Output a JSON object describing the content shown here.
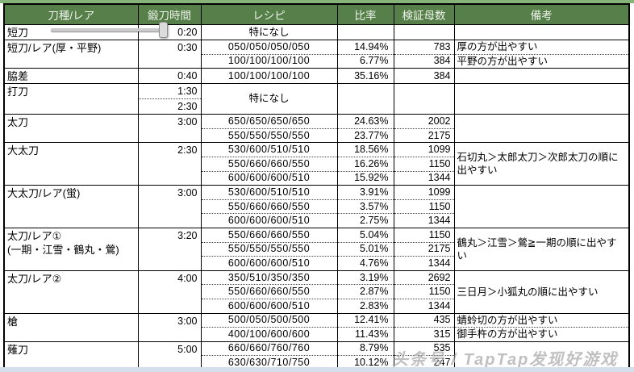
{
  "watermark": {
    "text": "头条号 / TapTap发现好游戏"
  },
  "colors": {
    "header_green": "#567f49",
    "header_text": "#edf3ea",
    "grid_border": "#000000",
    "top_strip": "#86b379",
    "bottom_strip": "#d4dfeb",
    "watermark_gray": "#9a9a9a"
  },
  "table": {
    "columns": [
      {
        "key": "type",
        "label": "刀種/レア"
      },
      {
        "key": "time",
        "label": "鍛刀時間"
      },
      {
        "key": "recipe",
        "label": "レシピ"
      },
      {
        "key": "ratio",
        "label": "比率"
      },
      {
        "key": "sample",
        "label": "検証母数"
      },
      {
        "key": "note",
        "label": "備考"
      }
    ],
    "no_recipe_text": "特になし",
    "groups": [
      {
        "name_lines": [
          "短刀"
        ],
        "times": [
          "0:20"
        ],
        "rows": [],
        "notes": []
      },
      {
        "name_lines": [
          "短刀/レア(厚・平野)"
        ],
        "times": [
          "0:30"
        ],
        "rows": [
          {
            "recipe": "050/050/050/050",
            "ratio": "14.94%",
            "sample": "783"
          },
          {
            "recipe": "100/100/100/100",
            "ratio": "6.77%",
            "sample": "384"
          }
        ],
        "notes": [
          "厚の方が出やすい",
          "平野の方が出やすい"
        ]
      },
      {
        "name_lines": [
          "脇差"
        ],
        "times": [
          "0:40"
        ],
        "rows": [
          {
            "recipe": "100/100/100/100",
            "ratio": "35.16%",
            "sample": "384"
          }
        ],
        "notes": []
      },
      {
        "name_lines": [
          "打刀"
        ],
        "times": [
          "1:30",
          "2:30"
        ],
        "rows": [],
        "notes": []
      },
      {
        "name_lines": [
          "太刀"
        ],
        "times": [
          "3:00"
        ],
        "rows": [
          {
            "recipe": "650/650/650/650",
            "ratio": "24.63%",
            "sample": "2002"
          },
          {
            "recipe": "550/550/550/550",
            "ratio": "23.77%",
            "sample": "2175"
          }
        ],
        "notes": []
      },
      {
        "name_lines": [
          "大太刀"
        ],
        "times": [
          "2:30"
        ],
        "rows": [
          {
            "recipe": "530/600/510/510",
            "ratio": "18.56%",
            "sample": "1099"
          },
          {
            "recipe": "550/660/660/550",
            "ratio": "16.26%",
            "sample": "1150"
          },
          {
            "recipe": "600/600/600/510",
            "ratio": "15.92%",
            "sample": "1344"
          }
        ],
        "notes": [
          "石切丸＞太郎太刀＞次郎太刀の順に出やすい"
        ]
      },
      {
        "name_lines": [
          "大太刀/レア(蛍)"
        ],
        "times": [
          "3:00"
        ],
        "rows": [
          {
            "recipe": "530/600/510/510",
            "ratio": "3.91%",
            "sample": "1099"
          },
          {
            "recipe": "550/660/660/550",
            "ratio": "3.57%",
            "sample": "1150"
          },
          {
            "recipe": "600/600/600/510",
            "ratio": "2.75%",
            "sample": "1344"
          }
        ],
        "notes": []
      },
      {
        "name_lines": [
          "太刀/レア①",
          "(一期・江雪・鶴丸・鶯)"
        ],
        "times": [
          "3:20"
        ],
        "rows": [
          {
            "recipe": "550/660/660/550",
            "ratio": "5.04%",
            "sample": "1150"
          },
          {
            "recipe": "550/550/550/550",
            "ratio": "5.01%",
            "sample": "2175"
          },
          {
            "recipe": "600/600/600/510",
            "ratio": "4.76%",
            "sample": "1344"
          }
        ],
        "notes": [
          "鶴丸＞江雪＞鶯≧一期の順に出やすい"
        ]
      },
      {
        "name_lines": [
          "太刀/レア②"
        ],
        "times": [
          "4:00"
        ],
        "rows": [
          {
            "recipe": "350/510/350/350",
            "ratio": "3.19%",
            "sample": "2692"
          },
          {
            "recipe": "550/660/660/550",
            "ratio": "2.87%",
            "sample": "1150"
          },
          {
            "recipe": "600/600/600/510",
            "ratio": "2.83%",
            "sample": "1344"
          }
        ],
        "notes": [
          "三日月＞小狐丸の順に出やすい"
        ]
      },
      {
        "name_lines": [
          "槍"
        ],
        "times": [
          "3:00"
        ],
        "rows": [
          {
            "recipe": "500/050/500/500",
            "ratio": "12.41%",
            "sample": "435"
          },
          {
            "recipe": "400/100/600/600",
            "ratio": "11.43%",
            "sample": "315"
          }
        ],
        "notes": [
          "蜻蛉切の方が出やすい",
          "御手杵の方が出やすい"
        ]
      },
      {
        "name_lines": [
          "薙刀"
        ],
        "times": [
          "5:00"
        ],
        "rows": [
          {
            "recipe": "660/660/760/760",
            "ratio": "8.79%",
            "sample": "535"
          },
          {
            "recipe": "630/630/710/750",
            "ratio": "10.12%",
            "sample": "247"
          }
        ],
        "notes": []
      }
    ]
  }
}
